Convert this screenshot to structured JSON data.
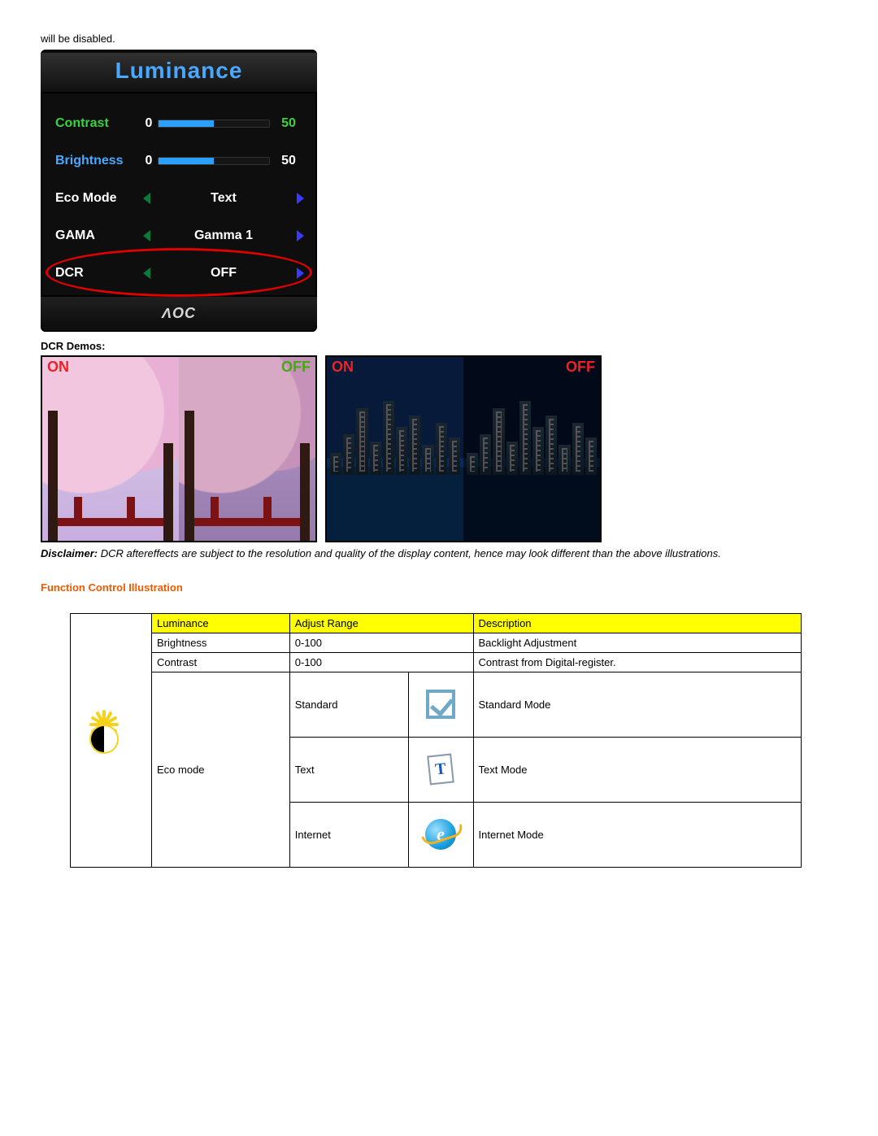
{
  "intro_text": "will be disabled.",
  "osd": {
    "title": "Luminance",
    "title_color": "#4aa8ff",
    "brand": "ΛOC",
    "brand_color": "#d8d8d8",
    "background_color": "#0e0e0e",
    "rows": [
      {
        "label": "Contrast",
        "label_color": "#39d33b",
        "type": "slider",
        "min": "0",
        "value": "50",
        "value_color": "#39d33b",
        "fill_pct": 50,
        "fill_color": "#2aa0ff"
      },
      {
        "label": "Brightness",
        "label_color": "#4aa8ff",
        "type": "slider",
        "min": "0",
        "value": "50",
        "value_color": "#ffffff",
        "fill_pct": 50,
        "fill_color": "#2aa0ff"
      },
      {
        "label": "Eco Mode",
        "label_color": "#ffffff",
        "type": "selector",
        "value": "Text",
        "value_color": "#ffffff"
      },
      {
        "label": "GAMA",
        "label_color": "#ffffff",
        "type": "selector",
        "value": "Gamma 1",
        "value_color": "#ffffff"
      },
      {
        "label": "DCR",
        "label_color": "#ffffff",
        "type": "selector",
        "value": "OFF",
        "value_color": "#ffffff",
        "highlighted": true,
        "highlight_color": "#e00000"
      }
    ]
  },
  "dcr_demos_label": "DCR Demos:",
  "demos": [
    {
      "on_label": "ON",
      "on_color": "#e22",
      "off_label": "OFF",
      "off_color": "#4a1",
      "scene": "blossom-bridge"
    },
    {
      "on_label": "ON",
      "on_color": "#e22",
      "off_label": "OFF",
      "off_color": "#e22",
      "scene": "city-night"
    }
  ],
  "disclaimer_label": "Disclaimer:",
  "disclaimer_text": " DCR aftereffects are subject to the resolution and quality of the display content, hence may look different than the above illustrations.",
  "section_heading": "Function Control Illustration",
  "section_heading_color": "#ee5a00",
  "table": {
    "header_bg": "#ffff00",
    "headers": [
      "Luminance",
      "Adjust Range",
      "Description"
    ],
    "group_icon": "luminance-sun",
    "rows": [
      {
        "name": "Brightness",
        "range": "0-100",
        "desc": "Backlight Adjustment"
      },
      {
        "name": "Contrast",
        "range": "0-100",
        "desc": "Contrast from Digital-register."
      }
    ],
    "eco": {
      "label": "Eco mode",
      "options": [
        {
          "name": "Standard",
          "icon": "check",
          "desc": "Standard Mode"
        },
        {
          "name": "Text",
          "icon": "text-doc",
          "desc": "Text Mode"
        },
        {
          "name": "Internet",
          "icon": "ie",
          "desc": "Internet Mode"
        }
      ]
    }
  }
}
